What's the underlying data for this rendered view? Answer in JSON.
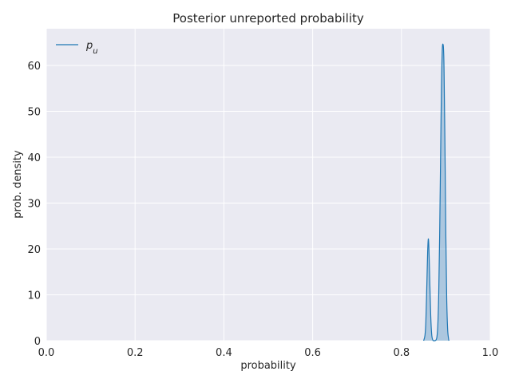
{
  "chart_data": {
    "type": "area",
    "title": "Posterior unreported probability",
    "xlabel": "probability",
    "ylabel": "prob. density",
    "xlim": [
      0,
      1
    ],
    "ylim": [
      0,
      68
    ],
    "xticks": [
      0.0,
      0.2,
      0.4,
      0.6,
      0.8,
      1.0
    ],
    "xtick_labels": [
      "0.0",
      "0.2",
      "0.4",
      "0.6",
      "0.8",
      "1.0"
    ],
    "yticks": [
      0,
      10,
      20,
      30,
      40,
      50,
      60
    ],
    "ytick_labels": [
      "0",
      "10",
      "20",
      "30",
      "40",
      "50",
      "60"
    ],
    "grid": true,
    "legend_position": "top-left",
    "series": [
      {
        "name": "p_u",
        "legend_label": "pu",
        "color": "#1f77b4",
        "fill_color": "#1f77b4",
        "x": [
          0.85,
          0.853,
          0.855,
          0.857,
          0.859,
          0.8605,
          0.862,
          0.864,
          0.866,
          0.868,
          0.87,
          0.872,
          0.874,
          0.876,
          0.878,
          0.88,
          0.882,
          0.884,
          0.886,
          0.888,
          0.89,
          0.892,
          0.894,
          0.895,
          0.896,
          0.898,
          0.9,
          0.902,
          0.904,
          0.906,
          0.907
        ],
        "y": [
          0.0,
          1.2,
          4.3,
          11.5,
          19.3,
          22.2,
          19.7,
          12.3,
          5.3,
          1.5,
          0.3,
          0.0,
          0.0,
          0.02,
          0.2,
          0.9,
          3.6,
          10.5,
          22.8,
          38.9,
          54.6,
          63.5,
          64.5,
          63.0,
          58.6,
          42.3,
          22.8,
          9.0,
          2.6,
          0.5,
          0.0
        ]
      }
    ]
  }
}
